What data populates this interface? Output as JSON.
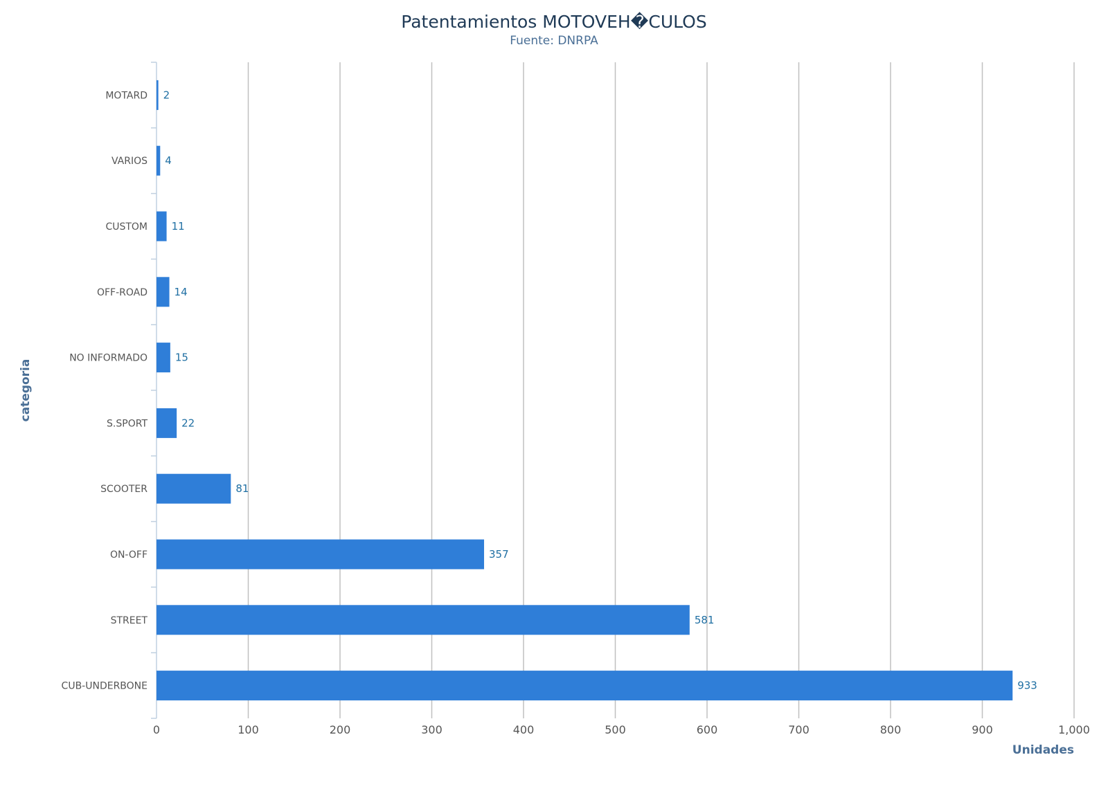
{
  "chart_data": {
    "type": "bar",
    "orientation": "horizontal",
    "title": "Patentamientos MOTOVEH�CULOS",
    "subtitle": "Fuente: DNRPA",
    "xlabel": "Unidades",
    "ylabel": "categoria",
    "categories": [
      "MOTARD",
      "VARIOS",
      "CUSTOM",
      "OFF-ROAD",
      "NO INFORMADO",
      "S.SPORT",
      "SCOOTER",
      "ON-OFF",
      "STREET",
      "CUB-UNDERBONE"
    ],
    "values": [
      2,
      4,
      11,
      14,
      15,
      22,
      81,
      357,
      581,
      933
    ],
    "xlim": [
      0,
      1000
    ],
    "xticks": [
      0,
      100,
      200,
      300,
      400,
      500,
      600,
      700,
      800,
      900,
      1000
    ],
    "xtick_labels": [
      "0",
      "100",
      "200",
      "300",
      "400",
      "500",
      "600",
      "700",
      "800",
      "900",
      "1,000"
    ],
    "grid": "vertical",
    "legend": "none",
    "bar_color": "#2f7ed8",
    "data_label_color": "#1f6fa3"
  }
}
